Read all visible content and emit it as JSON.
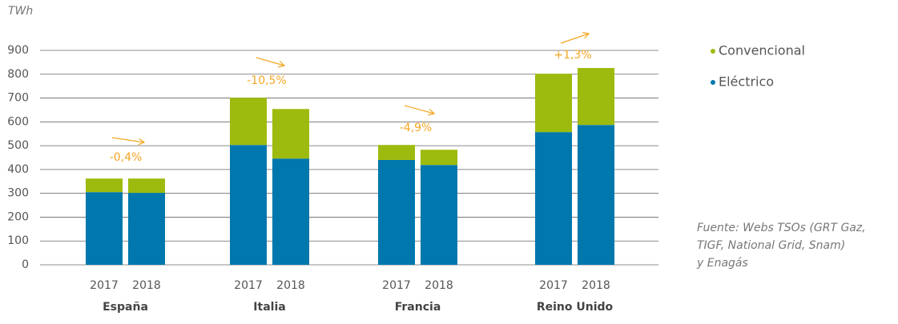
{
  "chart_data": {
    "type": "stacked_bar",
    "y_label": "TWh",
    "groups": [
      "España",
      "Italia",
      "Francia",
      "Reino Unido"
    ],
    "categories": [
      "2017",
      "2018",
      "2017",
      "2018",
      "2017",
      "2018",
      "2017",
      "2018"
    ],
    "series": [
      {
        "name": "Convencional",
        "color": "#9cbb0e",
        "values": [
          57,
          60,
          198,
          208,
          63,
          64,
          245,
          239
        ]
      },
      {
        "name": "Eléctrico",
        "color": "#0077ad",
        "values": [
          305,
          302,
          503,
          446,
          440,
          419,
          557,
          587
        ]
      }
    ],
    "annotations": [
      "-0,4%",
      "-10,5%",
      "-4,9%",
      "+1,3%"
    ],
    "annotation_color": "#f5a623",
    "ylim": [
      0,
      900
    ],
    "yticks": [
      0,
      100,
      200,
      300,
      400,
      500,
      600,
      700,
      800,
      900
    ],
    "grid": true,
    "source": [
      "Fuente: Webs TSOs (GRT Gaz,",
      "TIGF, National Grid, Snam)",
      "y Enagás"
    ]
  }
}
